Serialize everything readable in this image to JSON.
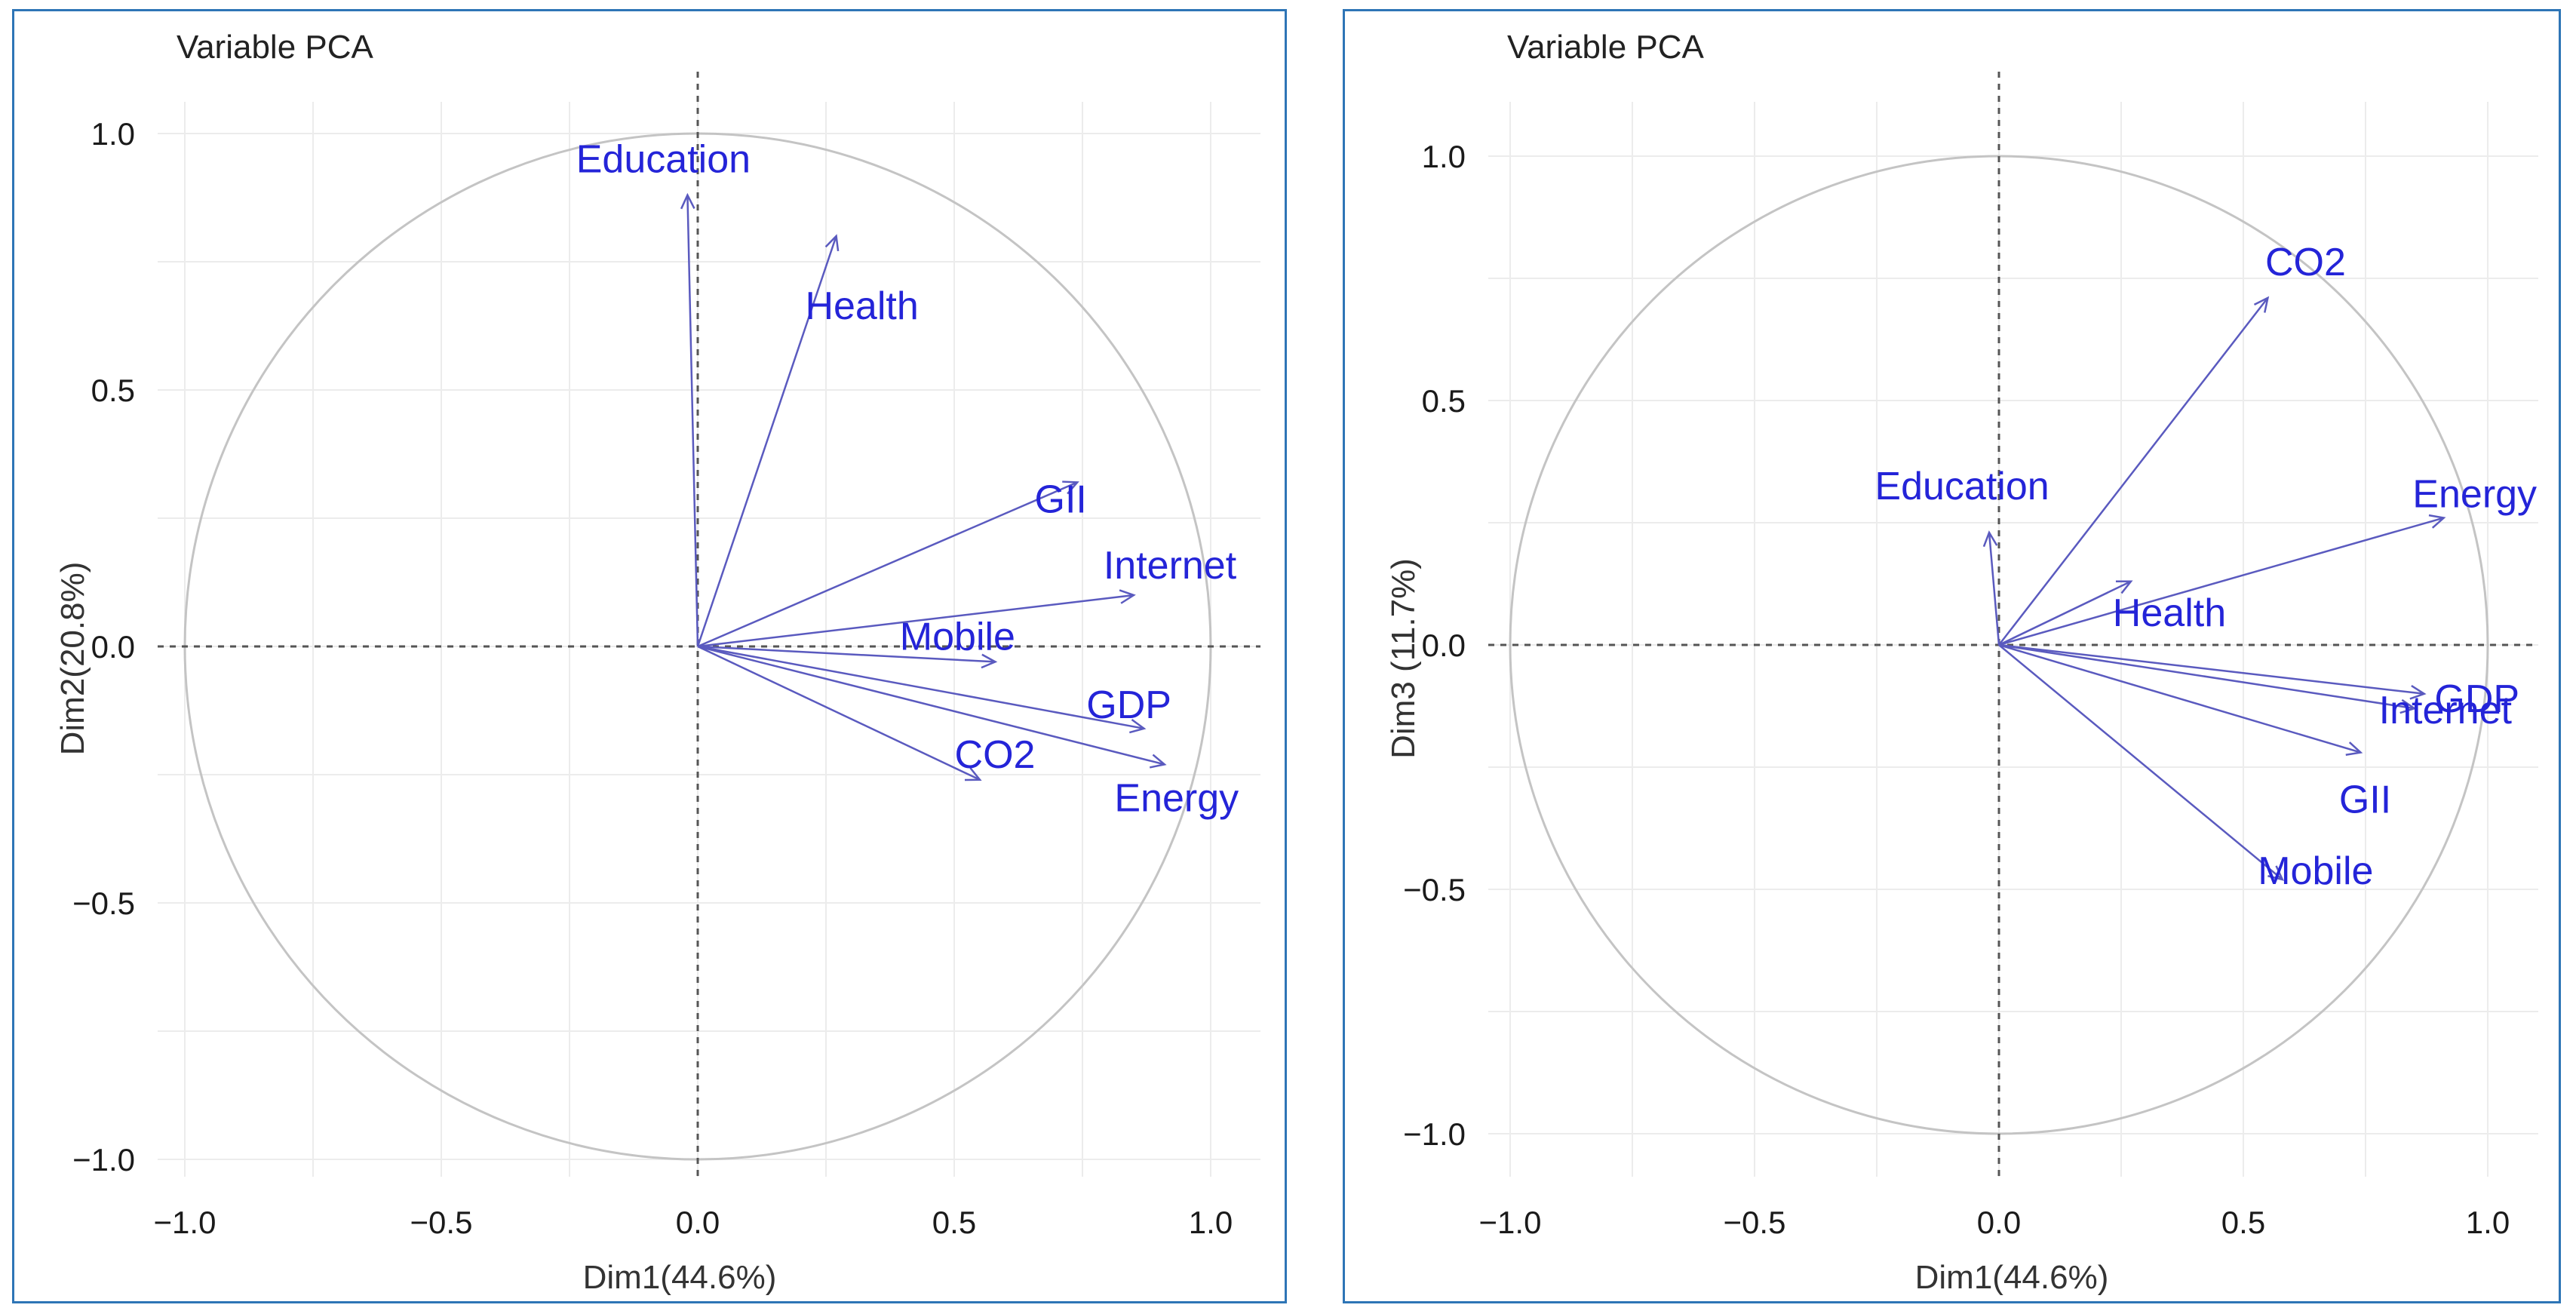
{
  "chart_data": [
    {
      "type": "scatter",
      "subtype": "pca-variable-correlation-circle",
      "title": "Variable PCA",
      "xlabel": "Dim1(44.6%)",
      "ylabel": "Dim2(20.8%)",
      "xlim": [
        -1.1,
        1.1
      ],
      "ylim": [
        -1.05,
        1.05
      ],
      "xticks": [
        "−1.0",
        "−0.5",
        "0.0",
        "0.5",
        "1.0"
      ],
      "yticks": [
        "1.0",
        "0.5",
        "0.0",
        "−0.5",
        "−1.0"
      ],
      "tick_values": [
        -1.0,
        -0.5,
        0.0,
        0.5,
        1.0
      ],
      "variables": [
        {
          "name": "Education",
          "x": -0.02,
          "y": 0.88
        },
        {
          "name": "Health",
          "x": 0.27,
          "y": 0.8
        },
        {
          "name": "GII",
          "x": 0.74,
          "y": 0.32
        },
        {
          "name": "Internet",
          "x": 0.85,
          "y": 0.1
        },
        {
          "name": "Mobile",
          "x": 0.58,
          "y": -0.03
        },
        {
          "name": "GDP",
          "x": 0.87,
          "y": -0.16
        },
        {
          "name": "CO2",
          "x": 0.55,
          "y": -0.26
        },
        {
          "name": "Energy",
          "x": 0.91,
          "y": -0.23
        }
      ]
    },
    {
      "type": "scatter",
      "subtype": "pca-variable-correlation-circle",
      "title": "Variable PCA",
      "xlabel": "Dim1(44.6%)",
      "ylabel": "Dim3 (11.7%)",
      "xlim": [
        -1.05,
        1.05
      ],
      "ylim": [
        -1.05,
        1.05
      ],
      "xticks": [
        "−1.0",
        "−0.5",
        "0.0",
        "0.5",
        "1.0"
      ],
      "yticks": [
        "1.0",
        "0.5",
        "0.0",
        "−0.5",
        "−1.0"
      ],
      "tick_values": [
        -1.0,
        -0.5,
        0.0,
        0.5,
        1.0
      ],
      "variables": [
        {
          "name": "CO2",
          "x": 0.55,
          "y": 0.71
        },
        {
          "name": "Energy",
          "x": 0.91,
          "y": 0.26
        },
        {
          "name": "Education",
          "x": -0.02,
          "y": 0.23
        },
        {
          "name": "Health",
          "x": 0.27,
          "y": 0.13
        },
        {
          "name": "GDP",
          "x": 0.87,
          "y": -0.1
        },
        {
          "name": "Internet",
          "x": 0.85,
          "y": -0.13
        },
        {
          "name": "GII",
          "x": 0.74,
          "y": -0.22
        },
        {
          "name": "Mobile",
          "x": 0.58,
          "y": -0.48
        }
      ]
    }
  ]
}
